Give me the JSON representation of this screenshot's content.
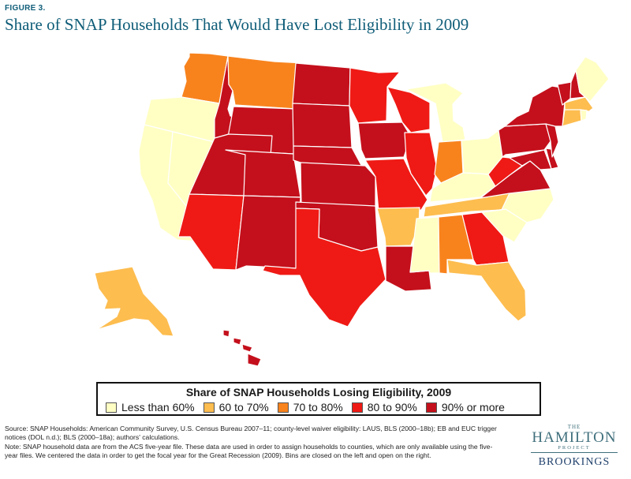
{
  "figure_label": "FIGURE 3.",
  "title": "Share of SNAP Households That Would Have Lost Eligibility in 2009",
  "legend": {
    "title": "Share of SNAP Households Losing Eligibility, 2009",
    "bins": [
      {
        "label": "Less than 60%",
        "color": "#ffffc4"
      },
      {
        "label": "60 to 70%",
        "color": "#fdbd4f"
      },
      {
        "label": "70 to 80%",
        "color": "#f8831d"
      },
      {
        "label": "80 to 90%",
        "color": "#ef1a15"
      },
      {
        "label": "90% or more",
        "color": "#c4101c"
      }
    ]
  },
  "state_bins": {
    "WA": 2,
    "OR": 0,
    "CA": 0,
    "NV": 0,
    "ID": 4,
    "MT": 2,
    "WY": 4,
    "UT": 4,
    "AZ": 3,
    "CO": 4,
    "NM": 4,
    "ND": 4,
    "SD": 4,
    "NE": 4,
    "KS": 4,
    "OK": 4,
    "TX": 3,
    "MN": 3,
    "IA": 4,
    "MO": 3,
    "AR": 1,
    "LA": 4,
    "WI": 3,
    "IL": 3,
    "MI": 0,
    "IN": 2,
    "OH": 0,
    "KY": 0,
    "TN": 1,
    "MS": 0,
    "AL": 2,
    "GA": 3,
    "FL": 1,
    "SC": 0,
    "NC": 0,
    "VA": 4,
    "WV": 3,
    "PA": 4,
    "NY": 4,
    "NJ": 4,
    "DE": 4,
    "MD": 4,
    "VT": 4,
    "NH": 4,
    "ME": 0,
    "MA": 1,
    "CT": 1,
    "RI": 0,
    "AK": 1,
    "HI": 4
  },
  "source_note": "Source: SNAP Households: American Community Survey, U.S. Census Bureau 2007–11; county-level waiver eligibility: LAUS, BLS (2000–18b); EB and EUC trigger notices (DOL n.d.); BLS (2000–18a); authors' calculations.",
  "note": "Note: SNAP household data are from the ACS five-year file. These data are used in order to assign households to counties, which are only available using the five-year files. We centered the data in order to get the focal year for the Great Recession (2009). Bins are closed on the left and open on the right.",
  "logo": {
    "the": "THE",
    "name": "HAMILTON",
    "project": "PROJECT",
    "institution": "BROOKINGS"
  }
}
